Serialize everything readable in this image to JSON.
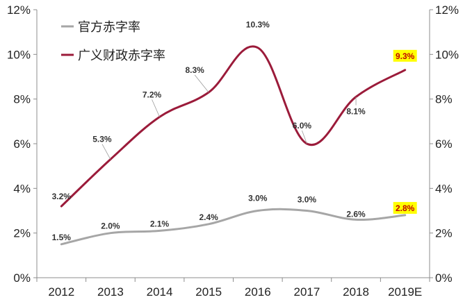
{
  "chart_data": {
    "type": "line",
    "title": "",
    "xlabel": "",
    "ylabel": "",
    "categories": [
      "2012",
      "2013",
      "2014",
      "2015",
      "2016",
      "2017",
      "2018",
      "2019E"
    ],
    "ylim": [
      0,
      12
    ],
    "yticks": [
      "0%",
      "2%",
      "4%",
      "6%",
      "8%",
      "10%",
      "12%"
    ],
    "secondary_y": true,
    "grid": false,
    "legend_position": "top-left",
    "series": [
      {
        "name": "官方赤字率",
        "color": "#a6a6a6",
        "values": [
          1.5,
          2.0,
          2.1,
          2.4,
          3.0,
          3.0,
          2.6,
          2.8
        ],
        "labels": [
          "1.5%",
          "2.0%",
          "2.1%",
          "2.4%",
          "3.0%",
          "3.0%",
          "2.6%",
          "2.8%"
        ],
        "highlight_last": true
      },
      {
        "name": "广义财政赤字率",
        "color": "#9b1b3a",
        "values": [
          3.2,
          5.3,
          7.2,
          8.3,
          10.3,
          6.0,
          8.1,
          9.3
        ],
        "labels": [
          "3.2%",
          "5.3%",
          "7.2%",
          "8.3%",
          "10.3%",
          "6.0%",
          "8.1%",
          "9.3%"
        ],
        "highlight_last": true
      }
    ],
    "highlight_color": "#ffff00"
  }
}
